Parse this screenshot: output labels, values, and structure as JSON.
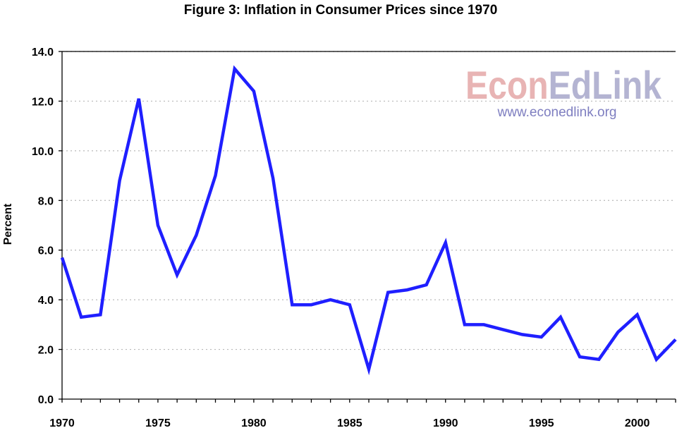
{
  "chart_data": {
    "type": "line",
    "title": "Figure 3: Inflation in Consumer Prices since 1970",
    "xlabel": "",
    "ylabel": "Percent",
    "xlim": [
      1970,
      2002
    ],
    "ylim": [
      0,
      14
    ],
    "x_ticks": [
      {
        "value": 1970,
        "label": "1970"
      },
      {
        "value": 1975,
        "label": "1975"
      },
      {
        "value": 1980,
        "label": "1980"
      },
      {
        "value": 1985,
        "label": "1985"
      },
      {
        "value": 1990,
        "label": "1990"
      },
      {
        "value": 1995,
        "label": "1995"
      },
      {
        "value": 2000,
        "label": "2000"
      }
    ],
    "y_ticks": [
      {
        "value": 0,
        "label": "0.0"
      },
      {
        "value": 2,
        "label": "2.0"
      },
      {
        "value": 4,
        "label": "4.0"
      },
      {
        "value": 6,
        "label": "6.0"
      },
      {
        "value": 8,
        "label": "8.0"
      },
      {
        "value": 10,
        "label": "10.0"
      },
      {
        "value": 12,
        "label": "12.0"
      },
      {
        "value": 14,
        "label": "14.0"
      }
    ],
    "grid": "horizontal-dotted",
    "legend": "none",
    "series": [
      {
        "color": "#1f1fff",
        "x": [
          1970,
          1971,
          1972,
          1973,
          1974,
          1975,
          1976,
          1977,
          1978,
          1979,
          1980,
          1981,
          1982,
          1983,
          1984,
          1985,
          1986,
          1987,
          1988,
          1989,
          1990,
          1991,
          1992,
          1993,
          1994,
          1995,
          1996,
          1997,
          1998,
          1999,
          2000,
          2001,
          2002
        ],
        "values": [
          5.7,
          3.3,
          3.4,
          8.8,
          12.1,
          7.0,
          5.0,
          6.6,
          9.0,
          13.3,
          12.4,
          8.9,
          3.8,
          3.8,
          4.0,
          3.8,
          1.2,
          4.3,
          4.4,
          4.6,
          6.3,
          3.0,
          3.0,
          2.8,
          2.6,
          2.5,
          3.3,
          1.7,
          1.6,
          2.7,
          3.4,
          1.6,
          2.4
        ]
      }
    ]
  },
  "watermark": {
    "brand_part1": "Econ",
    "brand_part2": "EdLink",
    "url": "www.econedlink.org",
    "color_part1": "#e8b4b4",
    "color_part2": "#b4b4d2",
    "color_url": "#7e7ec0"
  }
}
